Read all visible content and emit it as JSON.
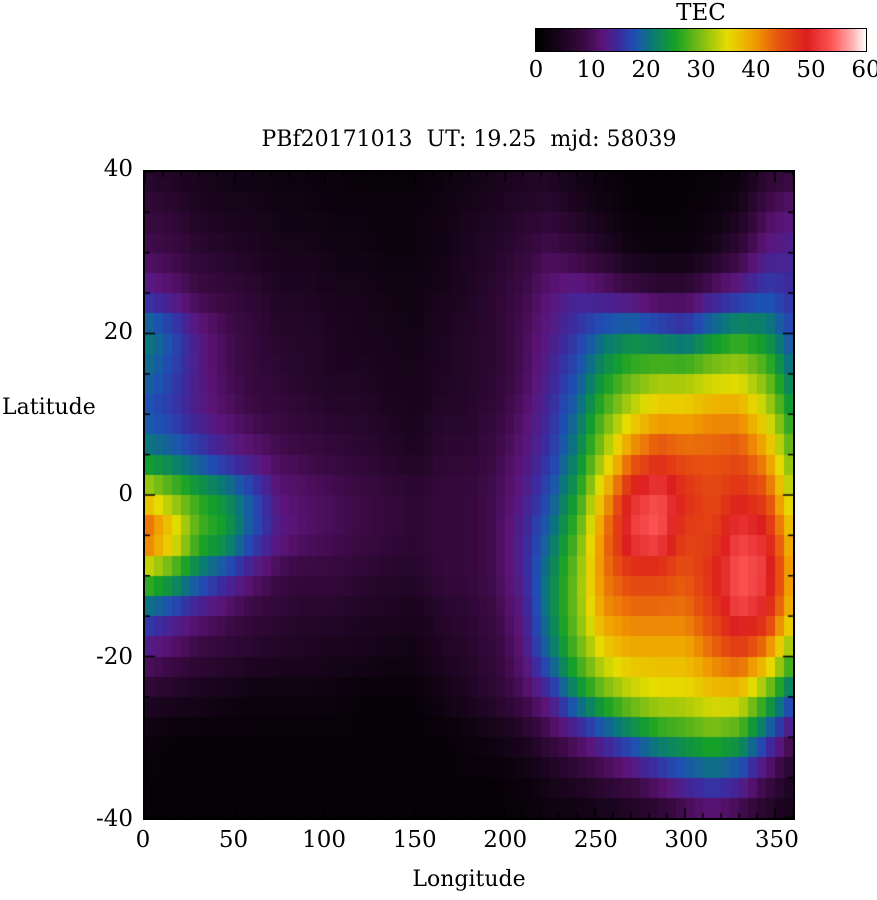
{
  "title": "PBf20171013  UT: 19.25  mjd: 58039",
  "colorbar": {
    "label": "TEC",
    "min": 0,
    "max": 60,
    "ticks": [
      "0",
      "10",
      "20",
      "30",
      "40",
      "50",
      "60"
    ],
    "tick_values": [
      0,
      10,
      20,
      30,
      40,
      50,
      60
    ]
  },
  "axes": {
    "xlabel": "Longitude",
    "ylabel": "Latitude",
    "xlim": [
      0,
      360
    ],
    "ylim": [
      -40,
      40
    ],
    "x_ticks": [
      "0",
      "50",
      "100",
      "150",
      "200",
      "250",
      "300",
      "350"
    ],
    "x_tick_values": [
      0,
      50,
      100,
      150,
      200,
      250,
      300,
      350
    ],
    "y_ticks": [
      "40",
      "20",
      "0",
      "-20",
      "-40"
    ],
    "y_tick_values": [
      40,
      20,
      0,
      -20,
      -40
    ]
  },
  "chart_data": {
    "type": "heatmap",
    "title": "PBf20171013  UT: 19.25  mjd: 58039",
    "xlabel": "Longitude",
    "ylabel": "Latitude",
    "value_label": "TEC",
    "value_range": [
      0,
      60
    ],
    "xlim": [
      0,
      360
    ],
    "ylim": [
      -40,
      40
    ],
    "lon": [
      0,
      15,
      30,
      45,
      60,
      75,
      90,
      105,
      120,
      135,
      150,
      165,
      180,
      195,
      210,
      225,
      240,
      255,
      270,
      285,
      300,
      315,
      330,
      345,
      360
    ],
    "lat": [
      40,
      35,
      30,
      25,
      20,
      15,
      10,
      5,
      0,
      -5,
      -10,
      -15,
      -20,
      -25,
      -30,
      -35,
      -40
    ],
    "values": [
      [
        6,
        5,
        4,
        3,
        3,
        2,
        2,
        2,
        1,
        1,
        1,
        2,
        3,
        4,
        5,
        5,
        3,
        2,
        1,
        1,
        1,
        1,
        2,
        6,
        8
      ],
      [
        8,
        7,
        5,
        4,
        4,
        3,
        3,
        2,
        2,
        2,
        2,
        3,
        4,
        5,
        6,
        7,
        5,
        3,
        1,
        1,
        1,
        2,
        4,
        10,
        12
      ],
      [
        10,
        9,
        7,
        6,
        5,
        4,
        4,
        3,
        3,
        2,
        2,
        3,
        5,
        6,
        8,
        10,
        8,
        6,
        3,
        2,
        2,
        4,
        8,
        13,
        14
      ],
      [
        14,
        12,
        9,
        8,
        7,
        5,
        5,
        4,
        4,
        3,
        3,
        4,
        5,
        7,
        9,
        12,
        14,
        12,
        10,
        8,
        8,
        12,
        14,
        17,
        15
      ],
      [
        22,
        18,
        13,
        10,
        8,
        6,
        6,
        5,
        4,
        4,
        3,
        5,
        6,
        7,
        10,
        13,
        16,
        20,
        22,
        20,
        18,
        22,
        25,
        23,
        17
      ],
      [
        20,
        17,
        13,
        10,
        8,
        7,
        6,
        5,
        5,
        4,
        4,
        5,
        6,
        7,
        10,
        14,
        18,
        24,
        28,
        30,
        30,
        32,
        33,
        29,
        20
      ],
      [
        18,
        16,
        13,
        11,
        9,
        8,
        7,
        6,
        6,
        5,
        4,
        6,
        6,
        8,
        11,
        15,
        20,
        28,
        34,
        38,
        38,
        40,
        40,
        34,
        24
      ],
      [
        22,
        20,
        17,
        14,
        12,
        10,
        9,
        8,
        7,
        6,
        5,
        7,
        7,
        9,
        12,
        16,
        22,
        32,
        42,
        46,
        44,
        44,
        45,
        40,
        28
      ],
      [
        35,
        30,
        26,
        23,
        18,
        12,
        11,
        10,
        9,
        8,
        7,
        8,
        8,
        10,
        13,
        18,
        25,
        38,
        50,
        53,
        48,
        45,
        48,
        45,
        32
      ],
      [
        46,
        38,
        28,
        25,
        18,
        13,
        11,
        10,
        9,
        8,
        7,
        8,
        8,
        10,
        14,
        20,
        28,
        42,
        52,
        54,
        46,
        46,
        52,
        50,
        36
      ],
      [
        30,
        26,
        20,
        16,
        12,
        9,
        8,
        8,
        7,
        6,
        6,
        8,
        8,
        10,
        14,
        22,
        30,
        42,
        46,
        46,
        44,
        48,
        54,
        52,
        38
      ],
      [
        18,
        15,
        12,
        10,
        8,
        7,
        6,
        6,
        5,
        5,
        4,
        6,
        7,
        9,
        13,
        22,
        30,
        40,
        42,
        42,
        42,
        46,
        52,
        49,
        36
      ],
      [
        12,
        10,
        8,
        7,
        6,
        5,
        5,
        4,
        4,
        3,
        3,
        5,
        6,
        8,
        12,
        20,
        28,
        35,
        38,
        38,
        38,
        42,
        45,
        40,
        28
      ],
      [
        6,
        5,
        4,
        3,
        2,
        2,
        2,
        2,
        1,
        1,
        1,
        3,
        5,
        7,
        10,
        14,
        22,
        28,
        32,
        34,
        34,
        36,
        36,
        28,
        18
      ],
      [
        2,
        1,
        1,
        1,
        1,
        1,
        1,
        1,
        1,
        1,
        1,
        1,
        2,
        3,
        5,
        9,
        12,
        16,
        20,
        24,
        26,
        28,
        26,
        18,
        10
      ],
      [
        1,
        1,
        1,
        1,
        1,
        1,
        1,
        1,
        1,
        1,
        1,
        1,
        1,
        1,
        2,
        4,
        6,
        8,
        10,
        13,
        16,
        18,
        16,
        10,
        5
      ],
      [
        1,
        1,
        1,
        1,
        1,
        1,
        1,
        1,
        1,
        1,
        1,
        1,
        1,
        1,
        1,
        2,
        2,
        3,
        4,
        5,
        8,
        10,
        8,
        5,
        3
      ]
    ],
    "colormap": [
      {
        "t": 0.0,
        "color": "#000000"
      },
      {
        "t": 0.08,
        "color": "#1c0520"
      },
      {
        "t": 0.15,
        "color": "#3c0a45"
      },
      {
        "t": 0.2,
        "color": "#5c1478"
      },
      {
        "t": 0.25,
        "color": "#3d2a9e"
      },
      {
        "t": 0.3,
        "color": "#1e50b4"
      },
      {
        "t": 0.35,
        "color": "#0a7878"
      },
      {
        "t": 0.42,
        "color": "#14a028"
      },
      {
        "t": 0.5,
        "color": "#7dbe14"
      },
      {
        "t": 0.58,
        "color": "#e6dc00"
      },
      {
        "t": 0.66,
        "color": "#f0a000"
      },
      {
        "t": 0.74,
        "color": "#e65010"
      },
      {
        "t": 0.82,
        "color": "#dc1e1e"
      },
      {
        "t": 0.9,
        "color": "#ff5a5a"
      },
      {
        "t": 0.96,
        "color": "#ffb4b4"
      },
      {
        "t": 1.0,
        "color": "#ffffff"
      }
    ]
  }
}
